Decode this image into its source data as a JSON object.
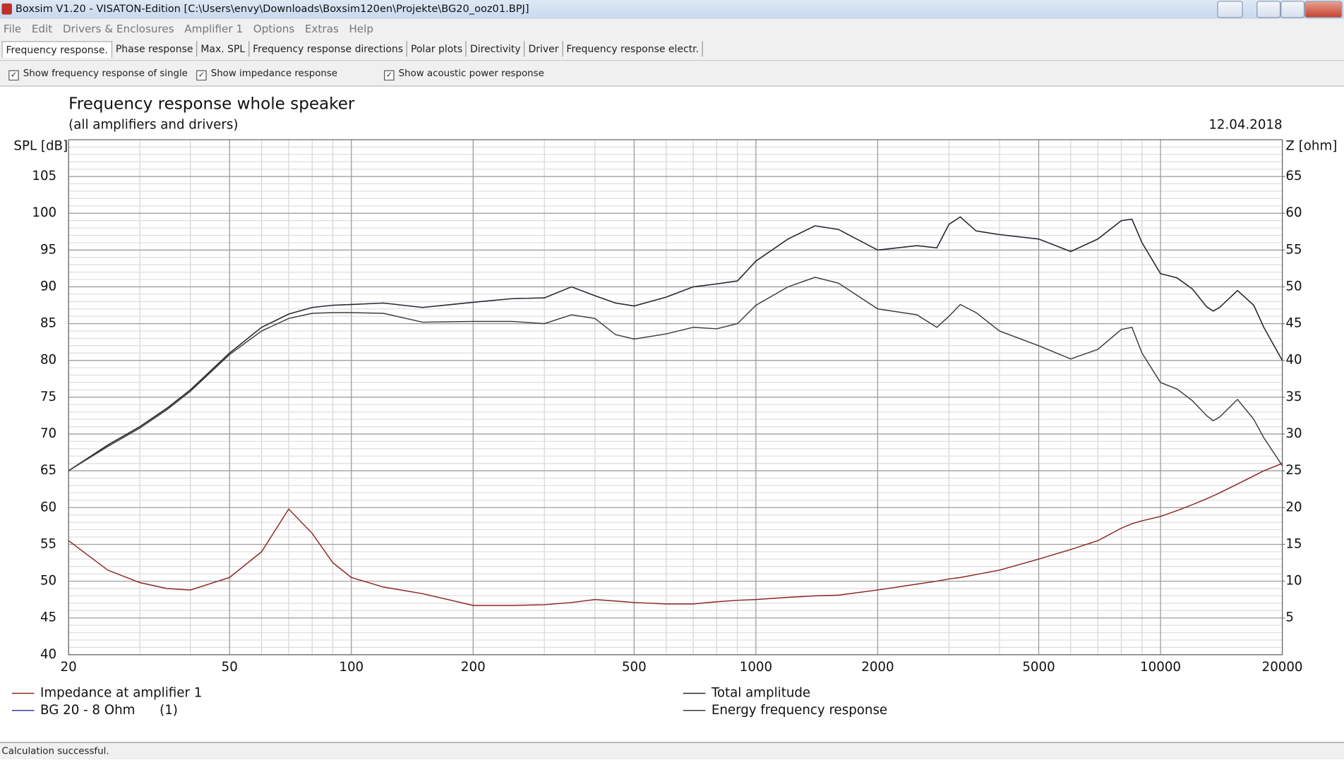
{
  "window": {
    "title": "Boxsim V1.20 - VISATON-Edition [C:\\Users\\envy\\Downloads\\Boxsim120en\\Projekte\\BG20_ooz01.BPJ]"
  },
  "menu": [
    "File",
    "Edit",
    "Drivers & Enclosures",
    "Amplifier 1",
    "Options",
    "Extras",
    "Help"
  ],
  "tabs": [
    "Frequency response.",
    "Phase response",
    "Max. SPL",
    "Frequency response directions",
    "Polar plots",
    "Directivity",
    "Driver",
    "Frequency response electr."
  ],
  "checkboxes": [
    "Show frequency response of single drive",
    "Show impedance response",
    "Show acoustic power response"
  ],
  "chart_data": {
    "type": "line",
    "title": "Frequency response whole speaker",
    "subtitle": "(all amplifiers and drivers)",
    "date": "12.04.2018",
    "ylabel": "SPL [dB]",
    "y2label": "Z [ohm]",
    "xlog": true,
    "grid": true,
    "x": [
      20,
      25,
      30,
      35,
      40,
      50,
      60,
      70,
      80,
      90,
      100,
      120,
      150,
      200,
      250,
      300,
      350,
      400,
      450,
      500,
      600,
      700,
      800,
      900,
      1000,
      1200,
      1400,
      1600,
      2000,
      2500,
      2800,
      3000,
      3200,
      3500,
      4000,
      5000,
      6000,
      7000,
      8000,
      8500,
      9000,
      10000,
      11000,
      12000,
      13000,
      13500,
      14000,
      15500,
      17000,
      18000,
      20000
    ],
    "xlim": [
      20,
      20000
    ],
    "xticks": [
      20,
      50,
      100,
      200,
      500,
      1000,
      2000,
      5000,
      10000,
      20000
    ],
    "ylim": [
      40,
      110
    ],
    "yticks": [
      40,
      45,
      50,
      55,
      60,
      65,
      70,
      75,
      80,
      85,
      90,
      95,
      100,
      105
    ],
    "y2lim": [
      0,
      70
    ],
    "y2ticks": [
      5,
      10,
      15,
      20,
      25,
      30,
      35,
      40,
      45,
      50,
      55,
      60,
      65
    ],
    "series": [
      {
        "name": "BG 20 - 8 Ohm      (1)",
        "color": "#3a3ab0",
        "values": [
          65,
          68.5,
          71,
          73.5,
          76,
          81,
          84.5,
          86.3,
          87.2,
          87.5,
          87.6,
          87.8,
          87.2,
          87.9,
          88.4,
          88.5,
          90,
          88.8,
          87.8,
          87.4,
          88.6,
          90,
          90.4,
          90.8,
          93.5,
          96.5,
          98.3,
          97.8,
          95,
          95.6,
          95.3,
          98.5,
          99.5,
          97.6,
          97.1,
          96.5,
          94.8,
          96.5,
          99,
          99.2,
          96,
          91.8,
          91.2,
          89.7,
          87.3,
          86.7,
          87.2,
          89.5,
          87.5,
          84.5,
          80
        ]
      },
      {
        "name": "Total amplitude",
        "color": "#2a2a2a",
        "values": [
          65,
          68.5,
          71,
          73.5,
          76,
          81,
          84.5,
          86.3,
          87.2,
          87.5,
          87.6,
          87.8,
          87.2,
          87.9,
          88.4,
          88.5,
          90,
          88.8,
          87.8,
          87.4,
          88.6,
          90,
          90.4,
          90.8,
          93.5,
          96.5,
          98.3,
          97.8,
          95,
          95.6,
          95.3,
          98.5,
          99.5,
          97.6,
          97.1,
          96.5,
          94.8,
          96.5,
          99,
          99.2,
          96,
          91.8,
          91.2,
          89.7,
          87.3,
          86.7,
          87.2,
          89.5,
          87.5,
          84.5,
          80
        ]
      },
      {
        "name": "Energy frequency response",
        "color": "#3c3c3c",
        "values": [
          65,
          68.3,
          70.8,
          73.3,
          75.8,
          80.8,
          84,
          85.7,
          86.4,
          86.5,
          86.5,
          86.4,
          85.2,
          85.3,
          85.3,
          85,
          86.2,
          85.7,
          83.5,
          82.9,
          83.6,
          84.5,
          84.3,
          85,
          87.5,
          90,
          91.3,
          90.5,
          87,
          86.2,
          84.5,
          86,
          87.6,
          86.5,
          84,
          82,
          80.2,
          81.5,
          84.2,
          84.5,
          81,
          77,
          76.1,
          74.5,
          72.5,
          71.8,
          72.3,
          74.7,
          72,
          69.5,
          65.7
        ]
      },
      {
        "name": "Impedance at amplifier 1",
        "color": "#8b2424",
        "axis": "y2",
        "values": [
          15.5,
          11.5,
          9.8,
          9,
          8.8,
          10.5,
          14,
          19.8,
          16.5,
          12.5,
          10.5,
          9.2,
          8.3,
          6.7,
          6.7,
          6.8,
          7.1,
          7.5,
          7.3,
          7.1,
          6.9,
          6.9,
          7.2,
          7.4,
          7.5,
          7.8,
          8,
          8.1,
          8.8,
          9.6,
          10,
          10.3,
          10.5,
          10.9,
          11.5,
          13,
          14.3,
          15.5,
          17.2,
          17.8,
          18.2,
          18.8,
          19.6,
          20.4,
          21.2,
          21.6,
          22,
          23.2,
          24.3,
          25,
          26
        ]
      }
    ]
  },
  "status": "Calculation successful."
}
